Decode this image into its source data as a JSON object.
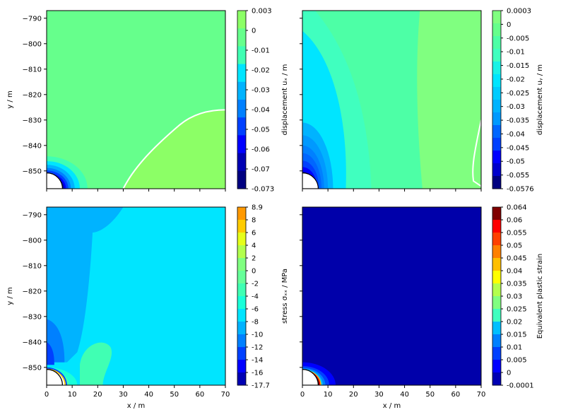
{
  "chart_data": [
    {
      "type": "heatmap",
      "panel": "top-left",
      "xlim": [
        0,
        70
      ],
      "ylim": [
        -857,
        -787
      ],
      "xticks": [
        0,
        10,
        20,
        30,
        40,
        50,
        60,
        70
      ],
      "yticks": [
        -850,
        -840,
        -830,
        -820,
        -810,
        -800,
        -790
      ],
      "ytick_labels": [
        "−850",
        "−840",
        "−830",
        "−820",
        "−810",
        "−800",
        "−790"
      ],
      "xlabel": "",
      "ylabel": "y / m",
      "colorbar_label": "displacement uₓ / m",
      "colorbar_ticks": [
        "0.003",
        "0",
        "-0.01",
        "-0.02",
        "-0.03",
        "-0.04",
        "-0.05",
        "-0.06",
        "-0.07",
        "-0.073"
      ],
      "colorbar_colors": [
        "#8cff66",
        "#66ff8c",
        "#40ffb3",
        "#00e5ff",
        "#00b3ff",
        "#0080ff",
        "#0040ff",
        "#0000ff",
        "#0000b3",
        "#000080"
      ],
      "fill_colors": {
        "background": "#66ff8c",
        "region": "#8cff66",
        "contour": "#ffffff"
      }
    },
    {
      "type": "heatmap",
      "panel": "top-right",
      "xlim": [
        0,
        70
      ],
      "ylim": [
        -857,
        -787
      ],
      "xticks": [
        0,
        10,
        20,
        30,
        40,
        50,
        60,
        70
      ],
      "yticks": [
        -850,
        -840,
        -830,
        -820,
        -810,
        -800,
        -790
      ],
      "xlabel": "",
      "ylabel": "",
      "colorbar_label": "displacement uᵧ / m",
      "colorbar_ticks": [
        "0.0003",
        "0",
        "-0.005",
        "-0.01",
        "-0.015",
        "-0.02",
        "-0.025",
        "-0.03",
        "-0.035",
        "-0.04",
        "-0.045",
        "-0.05",
        "-0.055",
        "-0.0576"
      ],
      "colorbar_colors": [
        "#80ff80",
        "#66ff8c",
        "#4dffa6",
        "#40ffbf",
        "#1af2e6",
        "#00e5ff",
        "#00ccff",
        "#00b3ff",
        "#0099ff",
        "#0066ff",
        "#0040ff",
        "#0000ff",
        "#0000cc",
        "#000080"
      ]
    },
    {
      "type": "heatmap",
      "panel": "bottom-left",
      "xlim": [
        0,
        70
      ],
      "ylim": [
        -857,
        -787
      ],
      "xticks": [
        0,
        10,
        20,
        30,
        40,
        50,
        60,
        70
      ],
      "yticks": [
        -850,
        -840,
        -830,
        -820,
        -810,
        -800,
        -790
      ],
      "xlabel": "x / m",
      "ylabel": "y / m",
      "colorbar_label": "stress σₓₓ / MPa",
      "colorbar_ticks": [
        "8.9",
        "8",
        "6",
        "4",
        "2",
        "0",
        "-2",
        "-4",
        "-6",
        "-8",
        "-10",
        "-12",
        "-14",
        "-16",
        "-17.7"
      ],
      "colorbar_colors": [
        "#ff9900",
        "#ffcc00",
        "#e6ff1a",
        "#b3ff4d",
        "#80ff80",
        "#66ff99",
        "#40ffb3",
        "#1affd9",
        "#00e5ff",
        "#00b3ff",
        "#0080ff",
        "#0040ff",
        "#0000ff",
        "#0000b3"
      ]
    },
    {
      "type": "heatmap",
      "panel": "bottom-right",
      "xlim": [
        0,
        70
      ],
      "ylim": [
        -857,
        -787
      ],
      "xticks": [
        0,
        10,
        20,
        30,
        40,
        50,
        60,
        70
      ],
      "yticks": [
        -850,
        -840,
        -830,
        -820,
        -810,
        -800,
        -790
      ],
      "xlabel": "x / m",
      "ylabel": "",
      "colorbar_label": "Equivalent plastic strain",
      "colorbar_ticks": [
        "0.064",
        "0.06",
        "0.055",
        "0.05",
        "0.045",
        "0.04",
        "0.035",
        "0.03",
        "0.025",
        "0.02",
        "0.015",
        "0.01",
        "0.005",
        "0",
        "-0.0001"
      ],
      "colorbar_colors": [
        "#800000",
        "#ff0000",
        "#ff4000",
        "#ff8000",
        "#ffbf00",
        "#ffff00",
        "#b3ff4d",
        "#80ff80",
        "#40ffbf",
        "#00bfff",
        "#0080ff",
        "#0040ff",
        "#0000ff",
        "#0000b3"
      ]
    }
  ]
}
